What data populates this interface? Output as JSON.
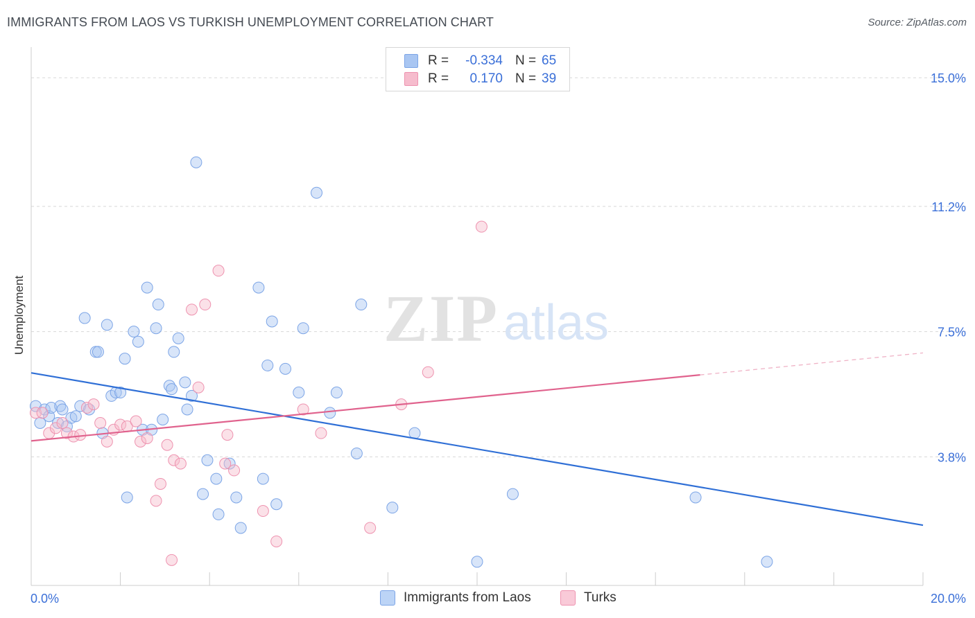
{
  "header": {
    "title": "IMMIGRANTS FROM LAOS VS TURKISH UNEMPLOYMENT CORRELATION CHART",
    "source": "Source: ZipAtlas.com"
  },
  "watermark": {
    "part1": "ZIP",
    "part2": "atlas"
  },
  "legend": {
    "rows": [
      {
        "r_label": "R =",
        "r_value": "-0.334",
        "n_label": "N =",
        "n_value": "65",
        "color": "#a9c6f2",
        "border": "#7ba4e6"
      },
      {
        "r_label": "R =",
        "r_value": "0.170",
        "n_label": "N =",
        "n_value": "39",
        "color": "#f6bccd",
        "border": "#ee92af"
      }
    ]
  },
  "bottom_legend": {
    "items": [
      {
        "label": "Immigrants from Laos",
        "color": "#bcd4f6",
        "border": "#7ba4e6"
      },
      {
        "label": "Turks",
        "color": "#f9cad8",
        "border": "#ee92af"
      }
    ]
  },
  "chart_data": {
    "type": "scatter",
    "title": "IMMIGRANTS FROM LAOS VS TURKISH UNEMPLOYMENT CORRELATION CHART",
    "xlabel": "",
    "ylabel": "Unemployment",
    "xlim": [
      0,
      20
    ],
    "ylim": [
      0,
      15.7
    ],
    "x_tick_labels": [
      {
        "value": 0,
        "label": "0.0%"
      },
      {
        "value": 20,
        "label": "20.0%"
      }
    ],
    "y_tick_labels": [
      {
        "value": 3.8,
        "label": "3.8%"
      },
      {
        "value": 7.5,
        "label": "7.5%"
      },
      {
        "value": 11.2,
        "label": "11.2%"
      },
      {
        "value": 15.0,
        "label": "15.0%"
      }
    ],
    "y_gridlines": [
      3.8,
      7.5,
      11.2,
      15.0
    ],
    "grid": true,
    "colors": {
      "laos_fill": "rgba(169,198,242,0.45)",
      "laos_stroke": "#7ba4e6",
      "laos_line": "#2f6fd6",
      "turks_fill": "rgba(246,188,205,0.45)",
      "turks_stroke": "#ee92af",
      "turks_line": "#e0628d",
      "tick_label": "#3a6fd8",
      "grid": "#d8d8d8"
    },
    "series": [
      {
        "name": "Immigrants from Laos",
        "points": [
          [
            0.1,
            5.3
          ],
          [
            0.2,
            4.8
          ],
          [
            0.3,
            5.2
          ],
          [
            0.4,
            5.0
          ],
          [
            0.45,
            5.25
          ],
          [
            0.6,
            4.8
          ],
          [
            0.65,
            5.3
          ],
          [
            0.7,
            5.2
          ],
          [
            0.8,
            4.7
          ],
          [
            0.9,
            4.95
          ],
          [
            1.0,
            5.0
          ],
          [
            1.1,
            5.3
          ],
          [
            1.2,
            7.9
          ],
          [
            1.3,
            5.2
          ],
          [
            1.45,
            6.9
          ],
          [
            1.5,
            6.9
          ],
          [
            1.6,
            4.5
          ],
          [
            1.7,
            7.7
          ],
          [
            1.8,
            5.6
          ],
          [
            1.9,
            5.7
          ],
          [
            2.0,
            5.7
          ],
          [
            2.1,
            6.7
          ],
          [
            2.15,
            2.6
          ],
          [
            2.3,
            7.5
          ],
          [
            2.4,
            7.2
          ],
          [
            2.5,
            4.6
          ],
          [
            2.6,
            8.8
          ],
          [
            2.7,
            4.6
          ],
          [
            2.8,
            7.6
          ],
          [
            2.85,
            8.3
          ],
          [
            2.95,
            4.9
          ],
          [
            3.1,
            5.9
          ],
          [
            3.15,
            5.8
          ],
          [
            3.2,
            6.9
          ],
          [
            3.3,
            7.3
          ],
          [
            3.45,
            6.0
          ],
          [
            3.5,
            5.2
          ],
          [
            3.6,
            5.6
          ],
          [
            3.7,
            12.5
          ],
          [
            3.85,
            2.7
          ],
          [
            3.95,
            3.7
          ],
          [
            4.15,
            3.15
          ],
          [
            4.2,
            2.1
          ],
          [
            4.45,
            3.6
          ],
          [
            4.6,
            2.6
          ],
          [
            4.7,
            1.7
          ],
          [
            5.1,
            8.8
          ],
          [
            5.2,
            3.15
          ],
          [
            5.3,
            6.5
          ],
          [
            5.4,
            7.8
          ],
          [
            5.5,
            2.4
          ],
          [
            5.7,
            6.4
          ],
          [
            6.0,
            5.7
          ],
          [
            6.1,
            7.6
          ],
          [
            6.4,
            11.6
          ],
          [
            6.7,
            5.1
          ],
          [
            6.85,
            5.7
          ],
          [
            7.3,
            3.9
          ],
          [
            7.4,
            8.3
          ],
          [
            8.1,
            2.3
          ],
          [
            8.6,
            4.5
          ],
          [
            10.0,
            0.7
          ],
          [
            10.8,
            2.7
          ],
          [
            14.9,
            2.6
          ],
          [
            16.5,
            0.7
          ]
        ],
        "trend_line": {
          "x": [
            0,
            20
          ],
          "y": [
            6.28,
            1.78
          ]
        }
      },
      {
        "name": "Turks",
        "points": [
          [
            0.1,
            5.1
          ],
          [
            0.25,
            5.1
          ],
          [
            0.4,
            4.5
          ],
          [
            0.55,
            4.65
          ],
          [
            0.7,
            4.8
          ],
          [
            0.8,
            4.5
          ],
          [
            0.95,
            4.4
          ],
          [
            1.1,
            4.45
          ],
          [
            1.25,
            5.25
          ],
          [
            1.4,
            5.35
          ],
          [
            1.55,
            4.8
          ],
          [
            1.7,
            4.25
          ],
          [
            1.85,
            4.6
          ],
          [
            2.0,
            4.75
          ],
          [
            2.15,
            4.7
          ],
          [
            2.35,
            4.85
          ],
          [
            2.45,
            4.25
          ],
          [
            2.6,
            4.35
          ],
          [
            2.8,
            2.5
          ],
          [
            2.9,
            3.0
          ],
          [
            3.05,
            4.15
          ],
          [
            3.15,
            0.75
          ],
          [
            3.2,
            3.7
          ],
          [
            3.35,
            3.6
          ],
          [
            3.6,
            8.15
          ],
          [
            3.75,
            5.85
          ],
          [
            3.9,
            8.3
          ],
          [
            4.2,
            9.3
          ],
          [
            4.35,
            3.6
          ],
          [
            4.4,
            4.45
          ],
          [
            4.55,
            3.4
          ],
          [
            5.2,
            2.2
          ],
          [
            5.5,
            1.3
          ],
          [
            6.1,
            5.2
          ],
          [
            6.5,
            4.5
          ],
          [
            7.6,
            1.7
          ],
          [
            8.3,
            5.35
          ],
          [
            8.9,
            6.3
          ],
          [
            10.1,
            10.6
          ]
        ],
        "trend_line": {
          "x": [
            0,
            15
          ],
          "y": [
            4.27,
            6.22
          ]
        },
        "trend_line_dashed": {
          "x": [
            15,
            20
          ],
          "y": [
            6.22,
            6.87
          ]
        }
      }
    ]
  }
}
